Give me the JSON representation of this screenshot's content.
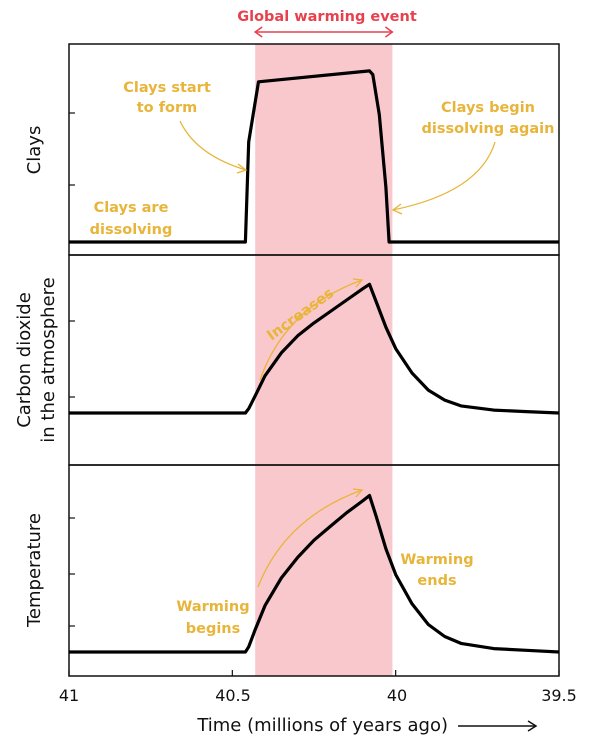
{
  "chart_data": {
    "type": "line",
    "xlabel": "Time (millions of years ago)",
    "x_ticks": [
      "41",
      "40.5",
      "40",
      "39.5"
    ],
    "x_tick_values": [
      41,
      40.5,
      40,
      39.5
    ],
    "xlim": [
      41,
      39.5
    ],
    "x_reversed": true,
    "event": {
      "label": "Global warming event",
      "start": 40.43,
      "end": 40.01,
      "color": "#F8C8CD",
      "label_color": "#E8414E"
    },
    "annotation_color": "#E8B53A",
    "panels": [
      {
        "ylabel": [
          "Clays"
        ],
        "x": [
          41.0,
          40.46,
          40.45,
          40.42,
          40.08,
          40.07,
          40.05,
          40.03,
          40.02,
          39.5
        ],
        "y": [
          0.0,
          0.0,
          0.55,
          0.88,
          0.94,
          0.92,
          0.7,
          0.3,
          0.0,
          0.0
        ],
        "annotations": [
          {
            "lines": [
              "Clays start",
              "to form"
            ]
          },
          {
            "lines": [
              "Clays begin",
              "dissolving again"
            ]
          },
          {
            "lines": [
              "Clays are",
              "dissolving"
            ]
          }
        ]
      },
      {
        "ylabel": [
          "Carbon dioxide",
          "in the atmosphere"
        ],
        "x": [
          41.0,
          40.46,
          40.45,
          40.43,
          40.4,
          40.35,
          40.3,
          40.25,
          40.2,
          40.15,
          40.1,
          40.08,
          40.06,
          40.03,
          40.0,
          39.95,
          39.9,
          39.85,
          39.8,
          39.7,
          39.6,
          39.5
        ],
        "y": [
          0.0,
          0.0,
          0.03,
          0.12,
          0.26,
          0.42,
          0.54,
          0.63,
          0.71,
          0.79,
          0.87,
          0.9,
          0.78,
          0.6,
          0.45,
          0.28,
          0.16,
          0.09,
          0.05,
          0.02,
          0.01,
          0.0
        ],
        "annotations": [
          {
            "lines": [
              "Increases"
            ]
          }
        ]
      },
      {
        "ylabel": [
          "Temperature"
        ],
        "x": [
          41.0,
          40.46,
          40.45,
          40.43,
          40.4,
          40.35,
          40.3,
          40.25,
          40.2,
          40.15,
          40.1,
          40.08,
          40.06,
          40.03,
          40.0,
          39.95,
          39.9,
          39.85,
          39.8,
          39.7,
          39.6,
          39.5
        ],
        "y": [
          0.0,
          0.0,
          0.03,
          0.13,
          0.27,
          0.43,
          0.55,
          0.65,
          0.73,
          0.81,
          0.88,
          0.91,
          0.79,
          0.6,
          0.45,
          0.28,
          0.16,
          0.09,
          0.05,
          0.02,
          0.01,
          0.0
        ],
        "annotations": [
          {
            "lines": [
              "Warming",
              "begins"
            ]
          },
          {
            "lines": [
              "Warming",
              "ends"
            ]
          }
        ]
      }
    ]
  }
}
